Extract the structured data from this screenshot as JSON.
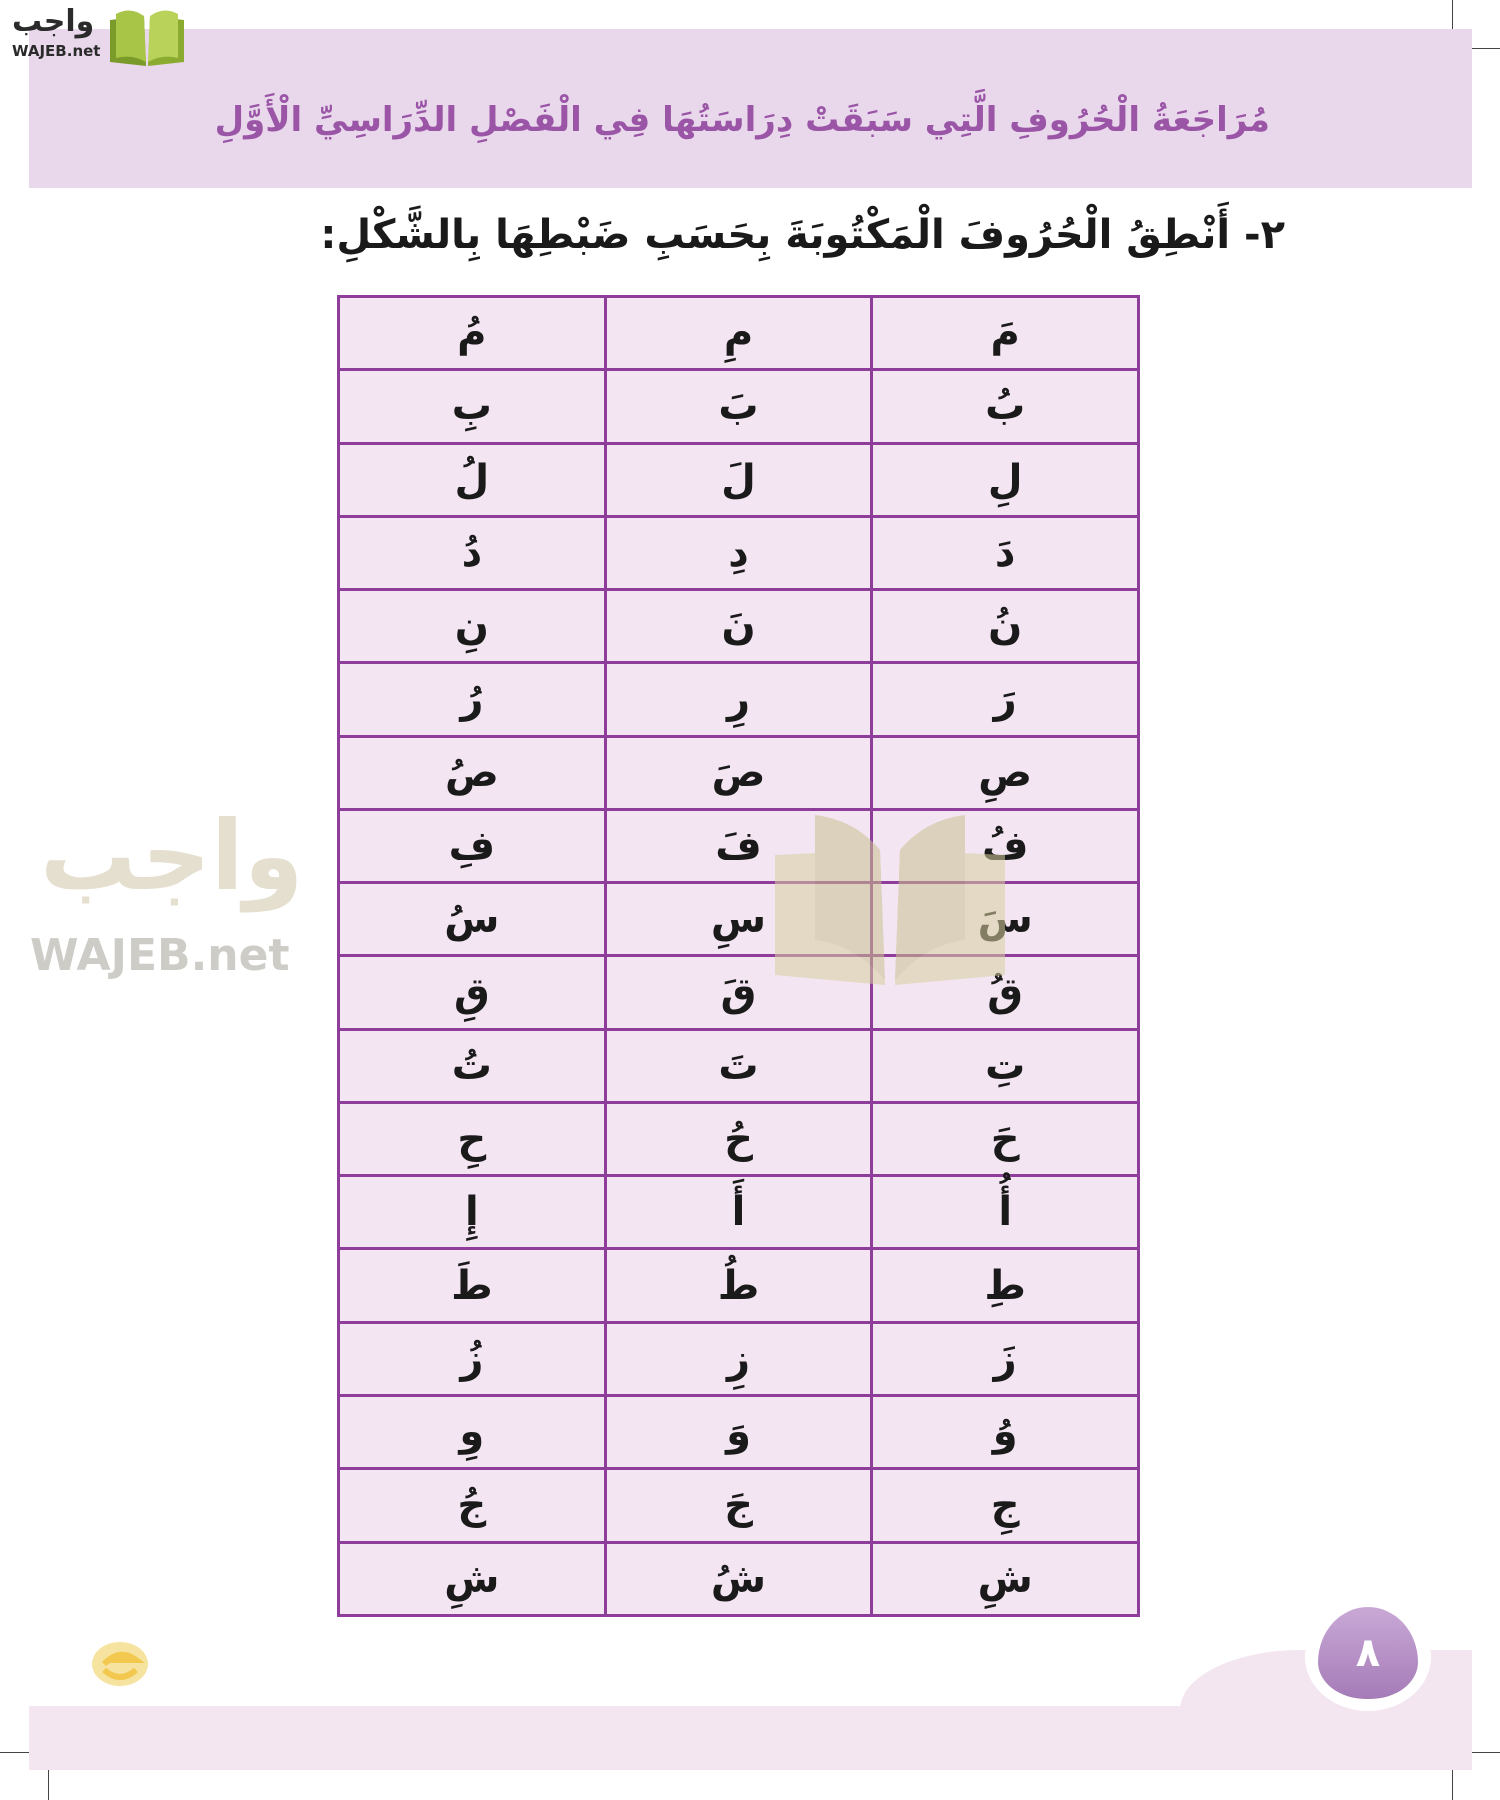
{
  "logo": {
    "arabic": "واجب",
    "latin": "WAJEB.net"
  },
  "header": {
    "title": "مُرَاجَعَةُ الْحُرُوفِ الَّتِي سَبَقَتْ دِرَاسَتُهَا فِي الْفَصْلِ الدِّرَاسِيِّ الْأَوَّلِ"
  },
  "instruction": "٢- أَنْطِقُ الْحُرُوفَ الْمَكْتُوبَةَ بِحَسَبِ ضَبْطِهَا بِالشَّكْلِ:",
  "table": {
    "rows": [
      [
        "مَ",
        "مِ",
        "مُ"
      ],
      [
        "بُ",
        "بَ",
        "بِ"
      ],
      [
        "لِ",
        "لَ",
        "لُ"
      ],
      [
        "دَ",
        "دِ",
        "دُ"
      ],
      [
        "نُ",
        "نَ",
        "نِ"
      ],
      [
        "رَ",
        "رِ",
        "رُ"
      ],
      [
        "صِ",
        "صَ",
        "صُ"
      ],
      [
        "فُ",
        "فَ",
        "فِ"
      ],
      [
        "سَ",
        "سِ",
        "سُ"
      ],
      [
        "قُ",
        "قَ",
        "قِ"
      ],
      [
        "تِ",
        "تَ",
        "تُ"
      ],
      [
        "حَ",
        "حُ",
        "حِ"
      ],
      [
        "أُ",
        "أَ",
        "إِ"
      ],
      [
        "طِ",
        "طُ",
        "طَ"
      ],
      [
        "زَ",
        "زِ",
        "زُ"
      ],
      [
        "وُ",
        "وَ",
        "وِ"
      ],
      [
        "جِ",
        "جَ",
        "جُ"
      ],
      [
        "شِ",
        "شُ",
        "شِ"
      ]
    ]
  },
  "watermark": {
    "arabic": "واجب",
    "latin": "WAJEB.net"
  },
  "footer": {
    "page_number": "٨"
  },
  "colors": {
    "accent": "#8e3d9a",
    "header_band": "#e9d8ec",
    "cell_bg": "#f3e5f2",
    "title": "#9a55a6"
  }
}
